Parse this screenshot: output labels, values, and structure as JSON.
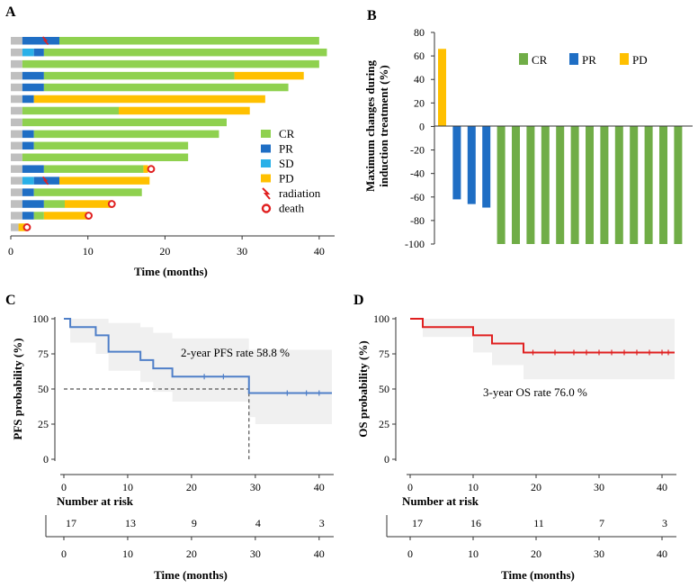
{
  "chart_data": [
    {
      "panel": "A",
      "type": "bar",
      "orientation": "horizontal-swimmer",
      "xlabel": "Time (months)",
      "xlim": [
        0,
        42
      ],
      "xticks": [
        "0",
        "10",
        "20",
        "30",
        "40"
      ],
      "legend": [
        {
          "label": "CR",
          "color": "#8fd14f"
        },
        {
          "label": "PR",
          "color": "#1f6ec4"
        },
        {
          "label": "SD",
          "color": "#29b0e8"
        },
        {
          "label": "PD",
          "color": "#ffc000"
        },
        {
          "label": "radiation",
          "color": "#e02020"
        },
        {
          "label": "death",
          "color": "#e02020"
        }
      ],
      "colors": {
        "pre": "#bfbfbf",
        "CR": "#8fd14f",
        "PR": "#1f6ec4",
        "SD": "#29b0e8",
        "PD": "#ffc000",
        "mark": "#e02020"
      },
      "patients": [
        {
          "segments": [
            {
              "s": "pre",
              "to": 1.5
            },
            {
              "s": "PR",
              "to": 6.3
            },
            {
              "s": "CR",
              "to": 40
            }
          ],
          "radiation": 4.5
        },
        {
          "segments": [
            {
              "s": "pre",
              "to": 1.5
            },
            {
              "s": "SD",
              "to": 3
            },
            {
              "s": "PR",
              "to": 4.3
            },
            {
              "s": "CR",
              "to": 41
            }
          ]
        },
        {
          "segments": [
            {
              "s": "pre",
              "to": 1.5
            },
            {
              "s": "CR",
              "to": 40
            }
          ]
        },
        {
          "segments": [
            {
              "s": "pre",
              "to": 1.5
            },
            {
              "s": "PR",
              "to": 4.3
            },
            {
              "s": "CR",
              "to": 29
            },
            {
              "s": "PD",
              "to": 38
            }
          ]
        },
        {
          "segments": [
            {
              "s": "pre",
              "to": 1.5
            },
            {
              "s": "PR",
              "to": 4.3
            },
            {
              "s": "CR",
              "to": 36
            }
          ]
        },
        {
          "segments": [
            {
              "s": "pre",
              "to": 1.5
            },
            {
              "s": "PR",
              "to": 3
            },
            {
              "s": "PD",
              "to": 33
            }
          ]
        },
        {
          "segments": [
            {
              "s": "pre",
              "to": 1.5
            },
            {
              "s": "CR",
              "to": 14
            },
            {
              "s": "PD",
              "to": 31
            }
          ]
        },
        {
          "segments": [
            {
              "s": "pre",
              "to": 1.5
            },
            {
              "s": "CR",
              "to": 28
            }
          ]
        },
        {
          "segments": [
            {
              "s": "pre",
              "to": 1.5
            },
            {
              "s": "PR",
              "to": 3
            },
            {
              "s": "CR",
              "to": 27
            }
          ]
        },
        {
          "segments": [
            {
              "s": "pre",
              "to": 1.5
            },
            {
              "s": "PR",
              "to": 3
            },
            {
              "s": "CR",
              "to": 23
            }
          ]
        },
        {
          "segments": [
            {
              "s": "pre",
              "to": 1.5
            },
            {
              "s": "CR",
              "to": 23
            }
          ]
        },
        {
          "segments": [
            {
              "s": "pre",
              "to": 1.5
            },
            {
              "s": "PR",
              "to": 4.3
            },
            {
              "s": "CR",
              "to": 17.2
            },
            {
              "s": "PD",
              "to": 17.8
            }
          ],
          "death": 18.2
        },
        {
          "segments": [
            {
              "s": "pre",
              "to": 1.5
            },
            {
              "s": "SD",
              "to": 3
            },
            {
              "s": "PR",
              "to": 6.3
            },
            {
              "s": "PD",
              "to": 18
            }
          ],
          "radiation": 4.5
        },
        {
          "segments": [
            {
              "s": "pre",
              "to": 1.5
            },
            {
              "s": "PR",
              "to": 3
            },
            {
              "s": "CR",
              "to": 17
            }
          ]
        },
        {
          "segments": [
            {
              "s": "pre",
              "to": 1.5
            },
            {
              "s": "PR",
              "to": 4.3
            },
            {
              "s": "CR",
              "to": 7
            },
            {
              "s": "PD",
              "to": 13
            }
          ],
          "death": 13.1
        },
        {
          "segments": [
            {
              "s": "pre",
              "to": 1.5
            },
            {
              "s": "PR",
              "to": 3
            },
            {
              "s": "CR",
              "to": 4.3
            },
            {
              "s": "PD",
              "to": 10
            }
          ],
          "death": 10.1
        },
        {
          "segments": [
            {
              "s": "pre",
              "to": 1
            },
            {
              "s": "PD",
              "to": 2
            }
          ],
          "death": 2.1
        }
      ]
    },
    {
      "panel": "B",
      "type": "bar",
      "ylabel_lines": [
        "Maximum changes during",
        "induction treatment  (%)"
      ],
      "ylim": [
        -100,
        80
      ],
      "yticks": [
        "80",
        "60",
        "40",
        "20",
        "0",
        "-20",
        "-40",
        "-60",
        "-80",
        "-100"
      ],
      "legend": [
        {
          "label": "CR",
          "color": "#70ad47"
        },
        {
          "label": "PR",
          "color": "#1f6ec4"
        },
        {
          "label": "PD",
          "color": "#ffc000"
        }
      ],
      "bars": [
        {
          "value": 66,
          "response": "PD"
        },
        {
          "value": -62,
          "response": "PR"
        },
        {
          "value": -66,
          "response": "PR"
        },
        {
          "value": -69,
          "response": "PR"
        },
        {
          "value": -100,
          "response": "CR"
        },
        {
          "value": -100,
          "response": "CR"
        },
        {
          "value": -100,
          "response": "CR"
        },
        {
          "value": -100,
          "response": "CR"
        },
        {
          "value": -100,
          "response": "CR"
        },
        {
          "value": -100,
          "response": "CR"
        },
        {
          "value": -100,
          "response": "CR"
        },
        {
          "value": -100,
          "response": "CR"
        },
        {
          "value": -100,
          "response": "CR"
        },
        {
          "value": -100,
          "response": "CR"
        },
        {
          "value": -100,
          "response": "CR"
        },
        {
          "value": -100,
          "response": "CR"
        },
        {
          "value": -100,
          "response": "CR"
        }
      ]
    },
    {
      "panel": "C",
      "type": "line",
      "style": "kaplan-meier",
      "color": "#4f7fc8",
      "ylabel": "PFS probability (%)",
      "xlabel": "Time (months)",
      "xlim": [
        0,
        42
      ],
      "ylim": [
        0,
        100
      ],
      "xticks": [
        "0",
        "10",
        "20",
        "30",
        "40"
      ],
      "yticks": [
        "100",
        "75",
        "50",
        "25",
        "0"
      ],
      "annotation": "2-year PFS rate 58.8 %",
      "median_line": {
        "y": 50,
        "x": 29
      },
      "steps": [
        [
          0,
          100
        ],
        [
          1,
          94.1
        ],
        [
          5,
          88.2
        ],
        [
          7,
          76.5
        ],
        [
          12,
          70.6
        ],
        [
          14,
          64.7
        ],
        [
          17,
          58.8
        ],
        [
          29,
          47.1
        ],
        [
          42,
          47.1
        ]
      ],
      "ci_upper": [
        [
          0,
          100
        ],
        [
          1,
          100
        ],
        [
          5,
          100
        ],
        [
          7,
          97
        ],
        [
          12,
          94
        ],
        [
          14,
          90
        ],
        [
          17,
          86
        ],
        [
          29,
          78
        ],
        [
          30,
          78
        ],
        [
          42,
          78
        ]
      ],
      "ci_lower": [
        [
          0,
          100
        ],
        [
          1,
          83
        ],
        [
          5,
          75
        ],
        [
          7,
          63
        ],
        [
          12,
          55
        ],
        [
          14,
          48
        ],
        [
          17,
          41
        ],
        [
          29,
          30
        ],
        [
          30,
          25
        ],
        [
          42,
          25
        ]
      ],
      "censor": [
        22,
        25,
        35,
        38,
        40
      ],
      "risk_title": "Number at risk",
      "risk_times": [
        0,
        10,
        20,
        30,
        40
      ],
      "risk_values": [
        "17",
        "13",
        "9",
        "4",
        "3"
      ]
    },
    {
      "panel": "D",
      "type": "line",
      "style": "kaplan-meier",
      "color": "#e02020",
      "ylabel": "OS probability (%)",
      "xlabel": "Time (months)",
      "xlim": [
        0,
        42
      ],
      "ylim": [
        0,
        100
      ],
      "xticks": [
        "0",
        "10",
        "20",
        "30",
        "40"
      ],
      "yticks": [
        "100",
        "75",
        "50",
        "25",
        "0"
      ],
      "annotation": "3-year OS rate 76.0 %",
      "steps": [
        [
          0,
          100
        ],
        [
          2,
          94.1
        ],
        [
          10,
          88.2
        ],
        [
          13,
          82.4
        ],
        [
          18,
          76.0
        ],
        [
          42,
          76.0
        ]
      ],
      "ci_upper": [
        [
          0,
          100
        ],
        [
          42,
          100
        ]
      ],
      "ci_lower": [
        [
          0,
          100
        ],
        [
          2,
          87
        ],
        [
          10,
          76
        ],
        [
          13,
          67
        ],
        [
          18,
          57
        ],
        [
          42,
          57
        ]
      ],
      "censor": [
        19.5,
        23,
        26,
        28,
        30,
        32,
        34,
        36,
        38,
        40,
        41
      ],
      "risk_title": "Number at risk",
      "risk_times": [
        0,
        10,
        20,
        30,
        40
      ],
      "risk_values": [
        "17",
        "16",
        "11",
        "7",
        "3"
      ]
    }
  ],
  "panels": {
    "a": "A",
    "b": "B",
    "c": "C",
    "d": "D"
  }
}
